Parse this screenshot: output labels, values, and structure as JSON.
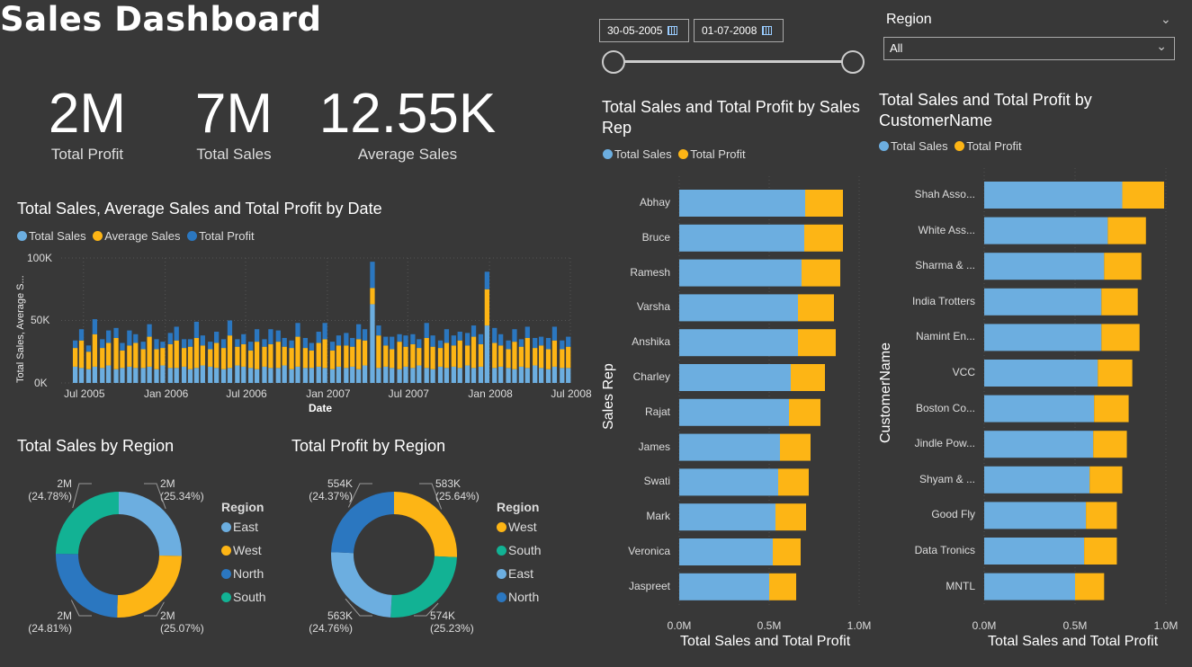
{
  "header": {
    "title": "Sales Dashboard"
  },
  "kpis": [
    {
      "value": "2M",
      "label": "Total Profit"
    },
    {
      "value": "7M",
      "label": "Total Sales"
    },
    {
      "value": "12.55K",
      "label": "Average Sales"
    }
  ],
  "filters": {
    "date_start": "30-05-2005",
    "date_end": "01-07-2008",
    "date_slider": {
      "start_fraction": 0,
      "end_fraction": 1
    },
    "region_label": "Region",
    "region_value": "All"
  },
  "colors": {
    "total_sales": "#6CAEE0",
    "average_sales": "#FDB515",
    "total_profit": "#2B77C0",
    "east": "#6CAEE0",
    "west": "#FDB515",
    "north": "#2B77C0",
    "south": "#12B294",
    "background": "#383838"
  },
  "chart_data": [
    {
      "type": "bar",
      "stacked": true,
      "title": "Total Sales, Average Sales and Total Profit by Date",
      "xlabel": "Date",
      "ylabel": "Total Sales, Average S...",
      "ylim": [
        0,
        100000
      ],
      "yticks": [
        "0K",
        "50K",
        "100K"
      ],
      "xticks": [
        "Jul 2005",
        "Jan 2006",
        "Jul 2006",
        "Jan 2007",
        "Jul 2007",
        "Jan 2008",
        "Jul 2008"
      ],
      "legend_position": "top-left",
      "grid": true,
      "x": [
        "2005-06-01",
        "2005-06-15",
        "2005-07-01",
        "2005-07-15",
        "2005-08-01",
        "2005-08-15",
        "2005-09-01",
        "2005-09-15",
        "2005-10-01",
        "2005-10-15",
        "2005-11-01",
        "2005-11-15",
        "2005-12-01",
        "2005-12-15",
        "2006-01-01",
        "2006-01-15",
        "2006-02-01",
        "2006-02-15",
        "2006-03-01",
        "2006-03-15",
        "2006-04-01",
        "2006-04-15",
        "2006-05-01",
        "2006-05-15",
        "2006-06-01",
        "2006-06-15",
        "2006-07-01",
        "2006-07-15",
        "2006-08-01",
        "2006-08-15",
        "2006-09-01",
        "2006-09-15",
        "2006-10-01",
        "2006-10-15",
        "2006-11-01",
        "2006-11-15",
        "2006-12-01",
        "2006-12-15",
        "2007-01-01",
        "2007-01-15",
        "2007-02-01",
        "2007-02-15",
        "2007-03-01",
        "2007-03-15",
        "2007-04-01",
        "2007-04-15",
        "2007-05-01",
        "2007-05-15",
        "2007-06-01",
        "2007-06-15",
        "2007-07-01",
        "2007-07-15",
        "2007-08-01",
        "2007-08-15",
        "2007-09-01",
        "2007-09-15",
        "2007-10-01",
        "2007-10-15",
        "2007-11-01",
        "2007-11-15",
        "2007-12-01",
        "2007-12-15",
        "2008-01-01",
        "2008-01-15",
        "2008-02-01",
        "2008-02-15",
        "2008-03-01",
        "2008-03-15",
        "2008-04-01",
        "2008-04-15",
        "2008-05-01",
        "2008-05-15",
        "2008-06-01",
        "2008-06-15"
      ],
      "series": [
        {
          "name": "Total Sales",
          "values": [
            13000,
            12000,
            11000,
            13000,
            12000,
            14000,
            11000,
            12000,
            13000,
            12000,
            12000,
            13000,
            11000,
            14000,
            12000,
            12000,
            13000,
            11000,
            12000,
            14000,
            13000,
            12000,
            11000,
            12000,
            14000,
            13000,
            12000,
            11000,
            13000,
            12000,
            12000,
            14000,
            11000,
            13000,
            12000,
            12000,
            13000,
            12000,
            11000,
            13000,
            12000,
            13000,
            11000,
            14000,
            63000,
            12000,
            13000,
            12000,
            11000,
            13000,
            12000,
            14000,
            12000,
            11000,
            13000,
            12000,
            13000,
            12000,
            14000,
            12000,
            13000,
            46000,
            12000,
            13000,
            12000,
            11000,
            13000,
            12000,
            14000,
            12000,
            11000,
            13000,
            12000,
            12000
          ]
        },
        {
          "name": "Average Sales",
          "values": [
            15000,
            22000,
            14000,
            26000,
            16000,
            18000,
            25000,
            14000,
            17000,
            20000,
            15000,
            24000,
            16000,
            14000,
            19000,
            22000,
            15000,
            18000,
            24000,
            16000,
            14000,
            20000,
            17000,
            26000,
            15000,
            18000,
            14000,
            22000,
            16000,
            19000,
            21000,
            15000,
            17000,
            24000,
            16000,
            14000,
            19000,
            23000,
            15000,
            17000,
            18000,
            16000,
            24000,
            20000,
            13000,
            26000,
            17000,
            15000,
            22000,
            16000,
            19000,
            14000,
            24000,
            18000,
            15000,
            20000,
            17000,
            22000,
            16000,
            25000,
            18000,
            29000,
            20000,
            17000,
            15000,
            22000,
            16000,
            24000,
            14000,
            18000,
            16000,
            21000,
            15000,
            17000
          ]
        },
        {
          "name": "Total Profit",
          "values": [
            6000,
            9000,
            5000,
            12000,
            7000,
            10000,
            8000,
            6000,
            12000,
            7000,
            6000,
            10000,
            8000,
            5000,
            9000,
            11000,
            7000,
            6000,
            13000,
            8000,
            6000,
            9000,
            7000,
            12000,
            6000,
            8000,
            7000,
            10000,
            6000,
            12000,
            9000,
            7000,
            6000,
            11000,
            8000,
            6000,
            9000,
            13000,
            7000,
            8000,
            10000,
            7000,
            12000,
            9000,
            21000,
            8000,
            7000,
            10000,
            6000,
            9000,
            8000,
            7000,
            12000,
            9000,
            6000,
            11000,
            8000,
            7000,
            10000,
            9000,
            8000,
            14000,
            12000,
            9000,
            7000,
            10000,
            6000,
            9000,
            8000,
            7000,
            9000,
            11000,
            7000,
            8000
          ]
        }
      ]
    },
    {
      "type": "pie",
      "donut": true,
      "title": "Total Sales by Region",
      "legend_title": "Region",
      "legend_position": "right",
      "slices": [
        {
          "name": "East",
          "label": "2M",
          "percent": "(25.34%)",
          "value": 25.34
        },
        {
          "name": "West",
          "label": "2M",
          "percent": "(25.07%)",
          "value": 25.07
        },
        {
          "name": "North",
          "label": "2M",
          "percent": "(24.81%)",
          "value": 24.81
        },
        {
          "name": "South",
          "label": "2M",
          "percent": "(24.78%)",
          "value": 24.78
        }
      ]
    },
    {
      "type": "pie",
      "donut": true,
      "title": "Total Profit by Region",
      "legend_title": "Region",
      "legend_position": "right",
      "slices": [
        {
          "name": "West",
          "label": "583K",
          "percent": "(25.64%)",
          "value": 25.64
        },
        {
          "name": "South",
          "label": "574K",
          "percent": "(25.23%)",
          "value": 25.23
        },
        {
          "name": "East",
          "label": "563K",
          "percent": "(24.76%)",
          "value": 24.76
        },
        {
          "name": "North",
          "label": "554K",
          "percent": "(24.37%)",
          "value": 24.37
        }
      ]
    },
    {
      "type": "bar",
      "orientation": "horizontal",
      "stacked": true,
      "title": "Total Sales and Total Profit by Sales Rep",
      "xlabel": "Total Sales and Total Profit",
      "ylabel": "Sales Rep",
      "xlim": [
        0,
        1000000
      ],
      "xticks": [
        "0.0M",
        "0.5M",
        "1.0M"
      ],
      "legend_position": "top-left",
      "categories": [
        "Abhay",
        "Bruce",
        "Ramesh",
        "Varsha",
        "Anshika",
        "Charley",
        "Rajat",
        "James",
        "Swati",
        "Mark",
        "Veronica",
        "Jaspreet"
      ],
      "series": [
        {
          "name": "Total Sales",
          "values": [
            700000,
            695000,
            680000,
            660000,
            660000,
            620000,
            610000,
            560000,
            550000,
            535000,
            520000,
            500000
          ]
        },
        {
          "name": "Total Profit",
          "values": [
            210000,
            215000,
            215000,
            200000,
            210000,
            190000,
            175000,
            170000,
            170000,
            170000,
            155000,
            150000
          ]
        }
      ]
    },
    {
      "type": "bar",
      "orientation": "horizontal",
      "stacked": true,
      "title": "Total Sales and Total Profit by CustomerName",
      "xlabel": "Total Sales and Total Profit",
      "ylabel": "CustomerName",
      "xlim": [
        0,
        1000000
      ],
      "xticks": [
        "0.0M",
        "0.5M",
        "1.0M"
      ],
      "legend_position": "top-left",
      "categories": [
        "Shah Asso...",
        "White Ass...",
        "Sharma & ...",
        "India Trotters",
        "Namint En...",
        "VCC",
        "Boston Co...",
        "Jindle Pow...",
        "Shyam & ...",
        "Good Fly",
        "Data Tronics",
        "MNTL"
      ],
      "series": [
        {
          "name": "Total Sales",
          "values": [
            760000,
            680000,
            660000,
            645000,
            645000,
            625000,
            605000,
            600000,
            580000,
            560000,
            550000,
            500000
          ]
        },
        {
          "name": "Total Profit",
          "values": [
            230000,
            210000,
            205000,
            200000,
            210000,
            190000,
            190000,
            185000,
            180000,
            170000,
            180000,
            160000
          ]
        }
      ]
    }
  ]
}
